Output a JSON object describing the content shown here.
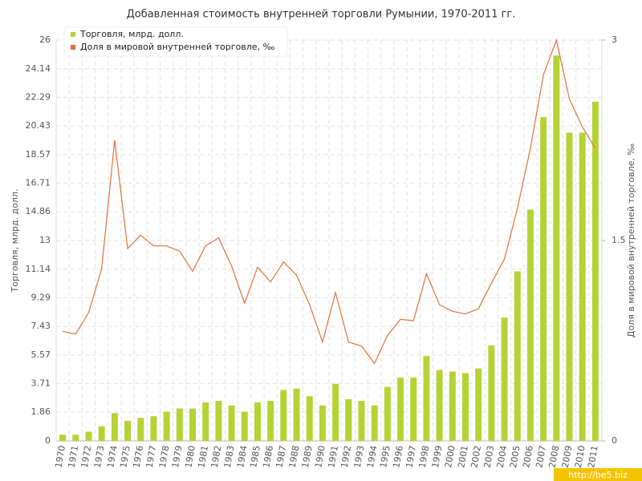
{
  "chart_data": {
    "type": "bar-line",
    "title": "Добавленная стоимость внутренней торговли Румынии, 1970-2011 гг.",
    "y_label": "Торговля, млрд. долл.",
    "y2_label": "Доля в мировой внутренней торговле, ‰",
    "watermark": "http://be5.biz",
    "categories": [
      "1970",
      "1971",
      "1972",
      "1973",
      "1974",
      "1975",
      "1976",
      "1977",
      "1978",
      "1979",
      "1980",
      "1981",
      "1982",
      "1983",
      "1984",
      "1985",
      "1986",
      "1987",
      "1988",
      "1989",
      "1990",
      "1991",
      "1992",
      "1993",
      "1994",
      "1995",
      "1996",
      "1997",
      "1998",
      "1999",
      "2000",
      "2001",
      "2002",
      "2003",
      "2004",
      "2005",
      "2006",
      "2007",
      "2008",
      "2009",
      "2010",
      "2011"
    ],
    "series": [
      {
        "name": "Торговля, млрд. долл.",
        "color": "#b5d334",
        "type": "bar",
        "values": [
          0.4,
          0.4,
          0.6,
          0.95,
          1.8,
          1.3,
          1.5,
          1.6,
          1.9,
          2.1,
          2.1,
          2.5,
          2.6,
          2.3,
          1.9,
          2.5,
          2.6,
          3.3,
          3.4,
          2.9,
          2.3,
          3.7,
          2.7,
          2.6,
          2.3,
          3.5,
          4.1,
          4.1,
          5.5,
          4.6,
          4.5,
          4.4,
          4.7,
          6.2,
          8.0,
          11.0,
          15.0,
          21.0,
          25.0,
          20.0,
          20.0,
          22.0
        ]
      },
      {
        "name": "Доля в мировой внутренней торговле, ‰",
        "color": "#e0703a",
        "type": "line",
        "axis": "y2",
        "values": [
          0.82,
          0.8,
          0.96,
          1.29,
          2.25,
          1.44,
          1.54,
          1.46,
          1.46,
          1.42,
          1.27,
          1.46,
          1.52,
          1.31,
          1.03,
          1.3,
          1.19,
          1.34,
          1.24,
          1.02,
          0.74,
          1.11,
          0.74,
          0.71,
          0.58,
          0.79,
          0.91,
          0.9,
          1.25,
          1.02,
          0.97,
          0.95,
          0.99,
          1.18,
          1.36,
          1.74,
          2.19,
          2.74,
          3.0,
          2.56,
          2.35,
          2.19
        ]
      }
    ],
    "ylim": [
      0,
      26
    ],
    "yticks": [
      0,
      1.86,
      3.71,
      5.57,
      7.43,
      9.29,
      11.14,
      13,
      14.86,
      16.71,
      18.57,
      20.43,
      22.29,
      24.14,
      26
    ],
    "y2lim": [
      0,
      3
    ],
    "y2ticks": [
      0,
      1.5,
      3
    ],
    "grid": true
  }
}
